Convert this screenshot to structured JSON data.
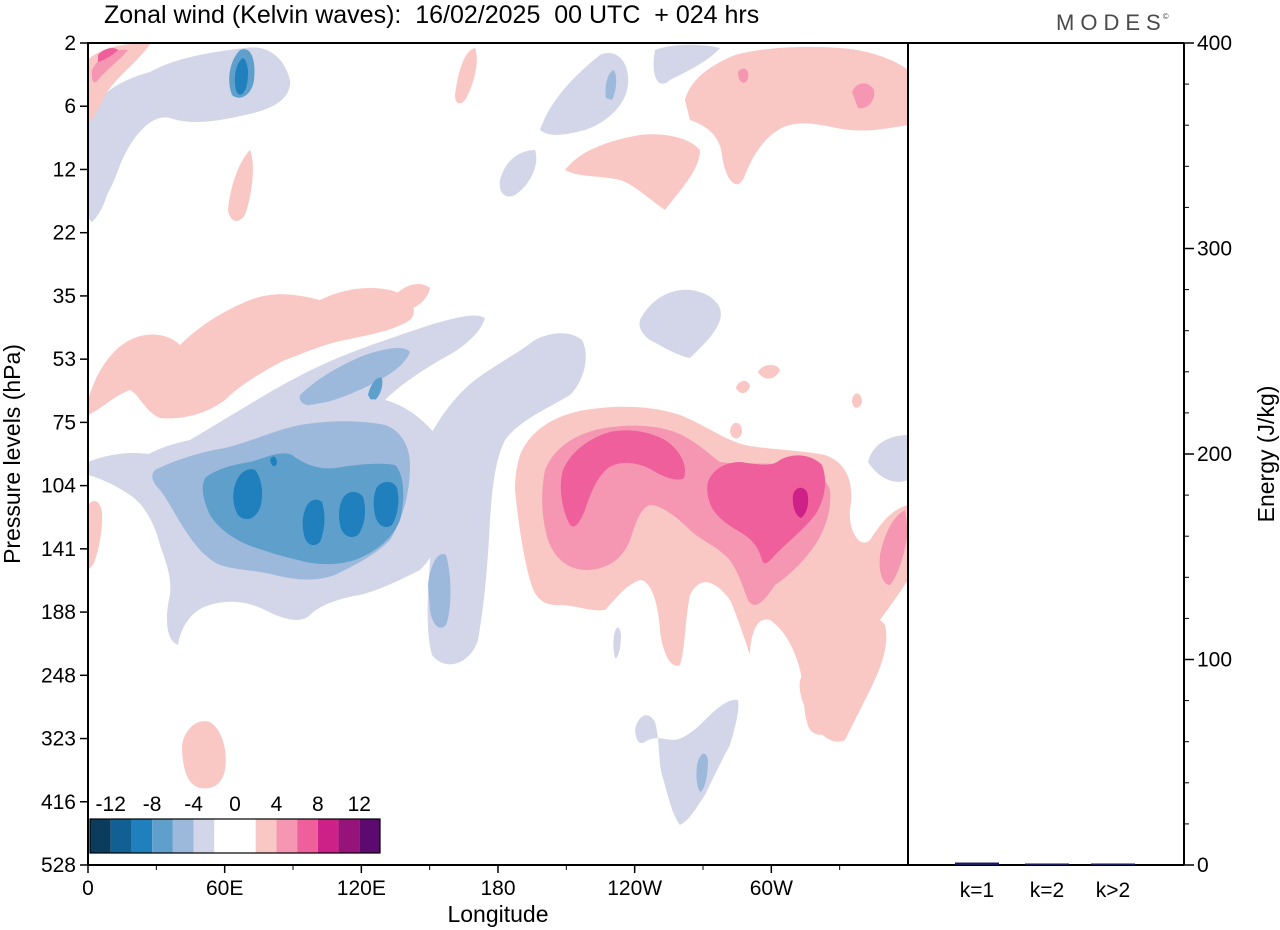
{
  "header": {
    "title": "Zonal wind (Kelvin waves):  16/02/2025  00 UTC  + 024 hrs",
    "brand": "MODES",
    "brand_mark": "©"
  },
  "chart_data": [
    {
      "type": "heatmap",
      "title": "Zonal wind (Kelvin waves):  16/02/2025  00 UTC  + 024 hrs",
      "xlabel": "Longitude",
      "ylabel": "Pressure levels (hPa)",
      "x_ticks": [
        "0",
        "60E",
        "120E",
        "180",
        "120W",
        "60W"
      ],
      "y_ticks": [
        "2",
        "6",
        "12",
        "22",
        "35",
        "53",
        "75",
        "104",
        "141",
        "188",
        "248",
        "323",
        "416",
        "528"
      ],
      "colorbar": {
        "labels": [
          "-12",
          "-8",
          "-4",
          "0",
          "4",
          "8",
          "12"
        ],
        "colors": [
          "#0b3c5d",
          "#125f93",
          "#1f80bd",
          "#5f9fcc",
          "#9cb9dc",
          "#d3d6e8",
          "#ffffff",
          "#ffffff",
          "#f9c8c4",
          "#f596b2",
          "#ee5f9b",
          "#cd2188",
          "#961379",
          "#5c0a6f"
        ]
      },
      "features": [
        {
          "sign": "negative",
          "level": -10,
          "lon": 57,
          "pressure": 104
        },
        {
          "sign": "negative",
          "level": -10,
          "lon": 97,
          "pressure": 115
        },
        {
          "sign": "negative",
          "level": -10,
          "lon": 117,
          "pressure": 110
        },
        {
          "sign": "positive",
          "level": 8,
          "lon": 225,
          "pressure": 100
        },
        {
          "sign": "positive",
          "level": 10,
          "lon": 295,
          "pressure": 110
        }
      ]
    },
    {
      "type": "bar",
      "categories": [
        "k=1",
        "k=2",
        "k>2"
      ],
      "values": [
        1.2,
        0.2,
        0.5
      ],
      "ylabel": "Energy (J/kg)",
      "ylim": [
        0,
        400
      ],
      "y_ticks": [
        "0",
        "100",
        "200",
        "300",
        "400"
      ],
      "bar_color": "#1a1a5e"
    }
  ]
}
